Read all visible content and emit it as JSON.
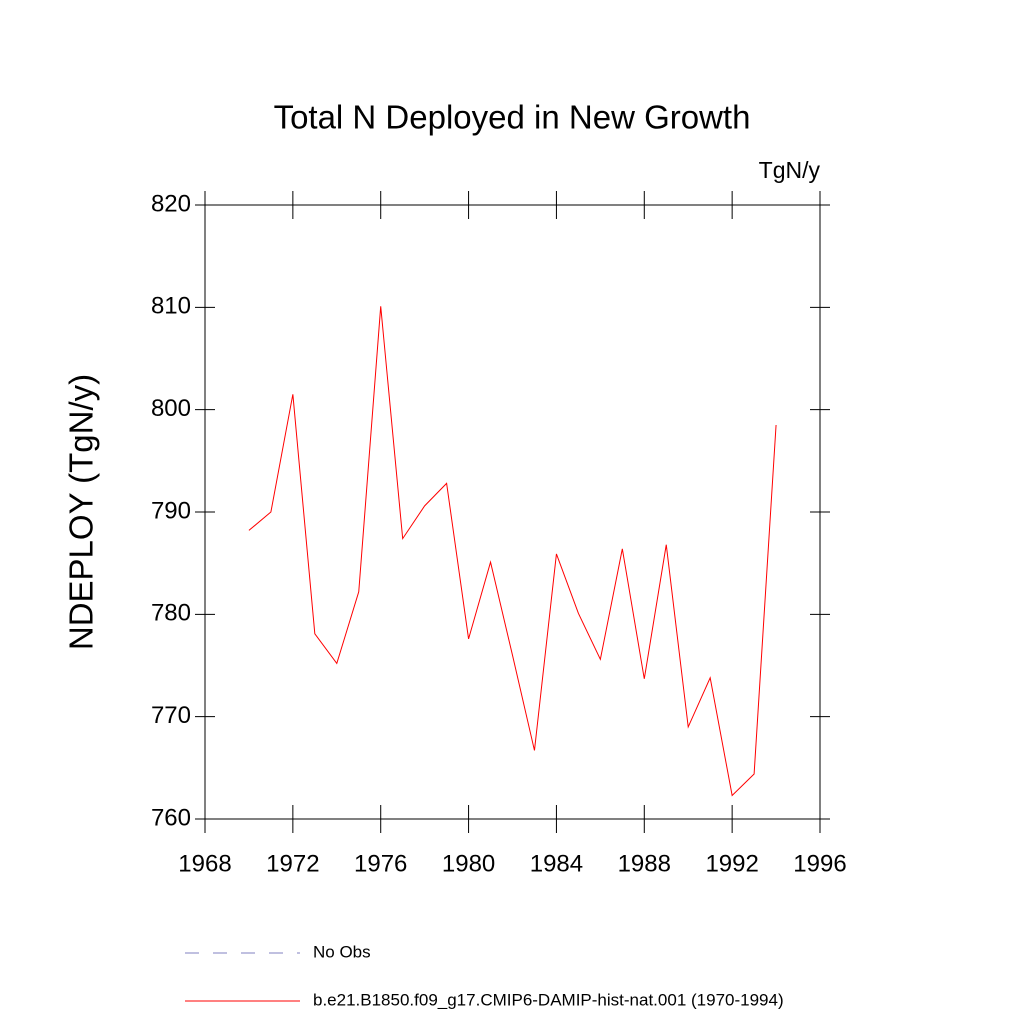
{
  "chart_data": {
    "type": "line",
    "title": "Total N Deployed in New Growth",
    "units": "TgN/y",
    "y_label": "NDEPLOY  (TgN/y)",
    "x": [
      1970,
      1971,
      1972,
      1973,
      1974,
      1975,
      1976,
      1977,
      1978,
      1979,
      1980,
      1981,
      1982,
      1983,
      1984,
      1985,
      1986,
      1987,
      1988,
      1989,
      1990,
      1991,
      1992,
      1993,
      1994
    ],
    "series": [
      {
        "name": "No Obs",
        "color": "#8080c0",
        "dash": true,
        "values": [
          null,
          null,
          null,
          null,
          null,
          null,
          null,
          null,
          null,
          null,
          null,
          null,
          null,
          null,
          null,
          null,
          null,
          null,
          null,
          null,
          null,
          null,
          null,
          null,
          null
        ]
      },
      {
        "name": "b.e21.B1850.f09_g17.CMIP6-DAMIP-hist-nat.001 (1970-1994)",
        "color": "#ff0000",
        "dash": false,
        "values": [
          788.2,
          790.0,
          801.5,
          778.1,
          775.2,
          782.2,
          810.1,
          787.4,
          790.6,
          792.8,
          777.6,
          785.1,
          776.0,
          766.7,
          785.9,
          780.1,
          775.6,
          786.4,
          773.7,
          786.8,
          769.0,
          773.8,
          762.3,
          764.4,
          798.5
        ]
      }
    ],
    "xlim": [
      1968,
      1996
    ],
    "xticks": [
      1968,
      1972,
      1976,
      1980,
      1984,
      1988,
      1992,
      1996
    ],
    "ylim": [
      760,
      820
    ],
    "yticks": [
      760,
      770,
      780,
      790,
      800,
      810,
      820
    ],
    "grid": false
  }
}
